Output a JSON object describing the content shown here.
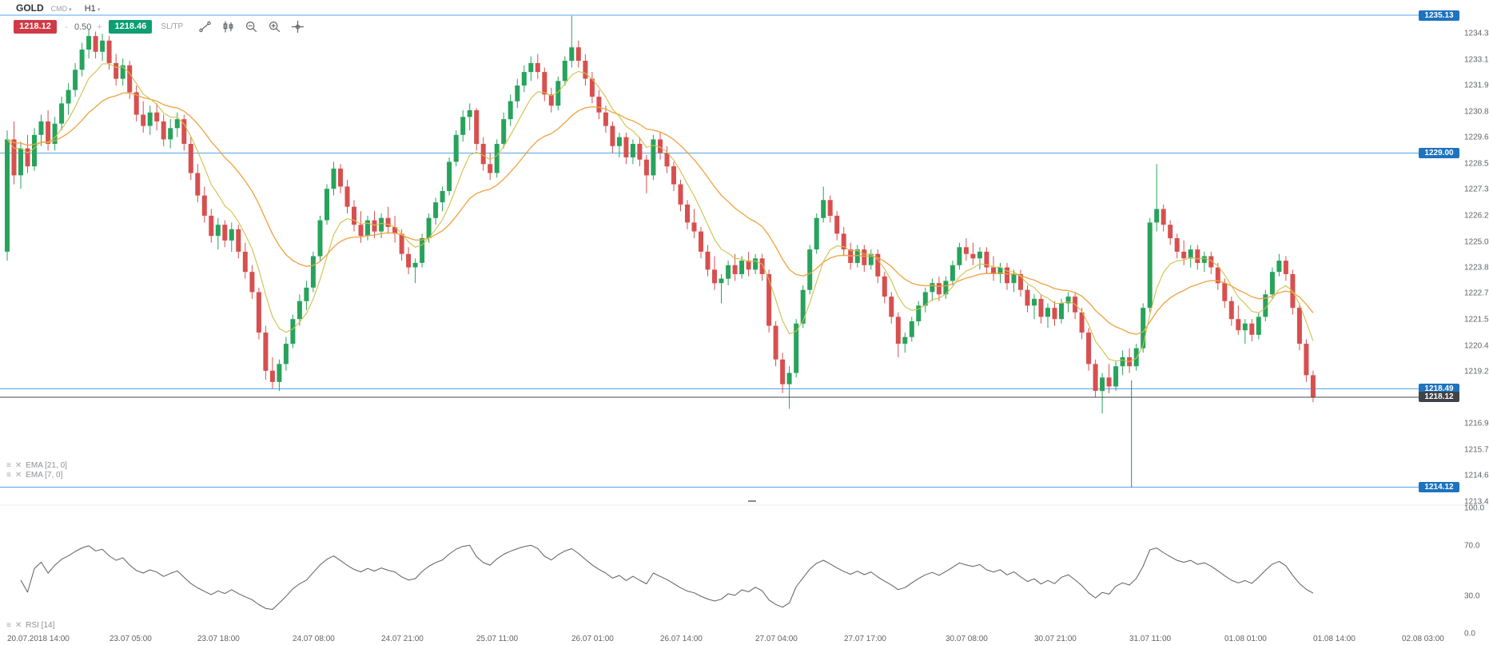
{
  "header": {
    "symbol": "GOLD",
    "market": "CMD",
    "timeframe": "H1"
  },
  "icons": {
    "menu": "≡",
    "close": "✕",
    "caret": "▾"
  },
  "toolbar": {
    "sell_price": "1218.12",
    "volume_minus": "-",
    "volume": "0.50",
    "volume_plus": "+",
    "buy_price": "1218.46",
    "sltp_label": "SL/TP"
  },
  "indicators": {
    "ema21_label": "EMA [21, 0]",
    "ema7_label": "EMA [7, 0]",
    "rsi_label": "RSI [14]"
  },
  "price_axis": {
    "labels": [
      "1234.31",
      "1233.15",
      "1231.99",
      "1230.83",
      "1229.67",
      "1228.52",
      "1227.36",
      "1226.20",
      "1225.04",
      "1223.89",
      "1222.73",
      "1221.57",
      "1220.41",
      "1219.26",
      "1216.94",
      "1215.78",
      "1214.62",
      "1213.47"
    ]
  },
  "rsi_axis": {
    "labels": [
      "100.0",
      "70.0",
      "30.0",
      "0.0"
    ]
  },
  "price_lines": [
    {
      "label": "1235.13",
      "value": 1235.13
    },
    {
      "label": "1229.00",
      "value": 1229.0
    },
    {
      "label": "1218.49",
      "value": 1218.49
    },
    {
      "label": "1214.12",
      "value": 1214.12
    }
  ],
  "current_price": {
    "label": "1218.12",
    "value": 1218.12
  },
  "time_axis": [
    {
      "label": "20.07.2018 14:00",
      "idx": 0
    },
    {
      "label": "23.07 05:00",
      "idx": 15
    },
    {
      "label": "23.07 18:00",
      "idx": 28
    },
    {
      "label": "24.07 08:00",
      "idx": 42
    },
    {
      "label": "24.07 21:00",
      "idx": 55
    },
    {
      "label": "25.07 11:00",
      "idx": 69
    },
    {
      "label": "26.07 01:00",
      "idx": 83
    },
    {
      "label": "26.07 14:00",
      "idx": 96
    },
    {
      "label": "27.07 04:00",
      "idx": 110
    },
    {
      "label": "27.07 17:00",
      "idx": 123
    },
    {
      "label": "30.07 08:00",
      "idx": 138
    },
    {
      "label": "30.07 21:00",
      "idx": 151
    },
    {
      "label": "31.07 11:00",
      "idx": 165
    },
    {
      "label": "01.08 01:00",
      "idx": 179
    },
    {
      "label": "01.08 14:00",
      "idx": 192
    },
    {
      "label": "02.08 03:00",
      "idx": 205
    }
  ],
  "colors": {
    "bull": "#27a35c",
    "bear": "#d84f4f",
    "ema21": "#f0a13e",
    "ema7": "#cfc04a",
    "level_line": "#56a5e8",
    "badge_blue": "#1e73be",
    "current_line": "#44484c",
    "current_badge": "#404448",
    "rsi_line": "#5f5f5f",
    "marker_teal": "#1f8a85",
    "sell_red": "#cf3a46",
    "buy_green": "#0d9e72"
  },
  "chart_data": {
    "type": "candlestick",
    "instrument": "GOLD",
    "timeframe": "H1",
    "first_candle_time": "20.07.2018 14:00",
    "last_price": 1218.12,
    "ylim": [
      1213.0,
      1235.6
    ],
    "overlays": [
      "EMA(21)",
      "EMA(7)"
    ],
    "oscillator": {
      "name": "RSI(14)",
      "range": [
        0,
        100
      ],
      "visible_levels": [
        100,
        70,
        30,
        0
      ]
    },
    "horizontal_lines": [
      1235.13,
      1229.0,
      1218.49,
      1214.12
    ],
    "candles": [
      [
        1224.6,
        1230.0,
        1224.2,
        1229.6
      ],
      [
        1229.6,
        1230.4,
        1227.6,
        1228.0
      ],
      [
        1228.0,
        1229.5,
        1227.4,
        1229.2
      ],
      [
        1229.2,
        1229.8,
        1228.1,
        1228.4
      ],
      [
        1228.4,
        1230.1,
        1228.2,
        1229.8
      ],
      [
        1229.8,
        1230.7,
        1229.3,
        1230.4
      ],
      [
        1230.4,
        1230.9,
        1229.1,
        1229.4
      ],
      [
        1229.4,
        1230.6,
        1229.1,
        1230.3
      ],
      [
        1230.3,
        1231.5,
        1230.0,
        1231.2
      ],
      [
        1231.2,
        1232.1,
        1230.7,
        1231.8
      ],
      [
        1231.8,
        1233.0,
        1231.5,
        1232.7
      ],
      [
        1232.7,
        1233.9,
        1232.4,
        1233.6
      ],
      [
        1233.6,
        1234.5,
        1233.2,
        1234.2
      ],
      [
        1234.2,
        1234.4,
        1233.2,
        1233.5
      ],
      [
        1233.5,
        1234.3,
        1233.1,
        1234.0
      ],
      [
        1234.0,
        1234.2,
        1232.7,
        1233.0
      ],
      [
        1233.0,
        1233.4,
        1232.0,
        1232.3
      ],
      [
        1232.3,
        1233.2,
        1232.0,
        1232.9
      ],
      [
        1232.9,
        1233.1,
        1231.4,
        1231.7
      ],
      [
        1231.7,
        1232.0,
        1230.4,
        1230.7
      ],
      [
        1230.7,
        1231.3,
        1229.9,
        1230.2
      ],
      [
        1230.2,
        1231.1,
        1229.8,
        1230.8
      ],
      [
        1230.8,
        1231.2,
        1230.0,
        1230.4
      ],
      [
        1230.4,
        1230.7,
        1229.3,
        1229.6
      ],
      [
        1229.6,
        1230.5,
        1229.2,
        1230.1
      ],
      [
        1230.1,
        1230.8,
        1229.7,
        1230.5
      ],
      [
        1230.5,
        1230.7,
        1229.1,
        1229.4
      ],
      [
        1229.4,
        1229.7,
        1227.8,
        1228.1
      ],
      [
        1228.1,
        1228.5,
        1226.8,
        1227.1
      ],
      [
        1227.1,
        1227.5,
        1225.9,
        1226.2
      ],
      [
        1226.2,
        1226.5,
        1225.0,
        1225.3
      ],
      [
        1225.3,
        1226.1,
        1224.7,
        1225.8
      ],
      [
        1225.8,
        1226.0,
        1224.8,
        1225.1
      ],
      [
        1225.1,
        1225.9,
        1224.6,
        1225.6
      ],
      [
        1225.6,
        1225.8,
        1224.3,
        1224.6
      ],
      [
        1224.6,
        1225.0,
        1223.4,
        1223.7
      ],
      [
        1223.7,
        1224.0,
        1222.5,
        1222.8
      ],
      [
        1222.8,
        1223.0,
        1220.7,
        1221.0
      ],
      [
        1221.0,
        1221.3,
        1218.9,
        1219.3
      ],
      [
        1219.3,
        1219.9,
        1218.5,
        1218.8
      ],
      [
        1218.8,
        1219.8,
        1218.4,
        1219.6
      ],
      [
        1219.6,
        1220.8,
        1219.3,
        1220.5
      ],
      [
        1220.5,
        1221.8,
        1220.3,
        1221.6
      ],
      [
        1221.6,
        1222.7,
        1221.3,
        1222.4
      ],
      [
        1222.4,
        1223.3,
        1222.0,
        1223.0
      ],
      [
        1223.0,
        1224.6,
        1222.8,
        1224.4
      ],
      [
        1224.4,
        1226.2,
        1224.2,
        1226.0
      ],
      [
        1226.0,
        1227.6,
        1225.8,
        1227.4
      ],
      [
        1227.4,
        1228.6,
        1227.1,
        1228.3
      ],
      [
        1228.3,
        1228.5,
        1227.2,
        1227.5
      ],
      [
        1227.5,
        1227.8,
        1226.3,
        1226.6
      ],
      [
        1226.6,
        1226.9,
        1225.5,
        1225.8
      ],
      [
        1225.8,
        1226.4,
        1225.0,
        1225.3
      ],
      [
        1225.3,
        1226.2,
        1225.1,
        1226.0
      ],
      [
        1226.0,
        1226.4,
        1225.2,
        1225.5
      ],
      [
        1225.5,
        1226.3,
        1225.2,
        1226.1
      ],
      [
        1226.1,
        1226.6,
        1225.4,
        1225.7
      ],
      [
        1225.7,
        1226.2,
        1225.0,
        1225.4
      ],
      [
        1225.4,
        1225.6,
        1224.2,
        1224.5
      ],
      [
        1224.5,
        1224.8,
        1223.6,
        1223.9
      ],
      [
        1223.9,
        1224.3,
        1223.2,
        1224.1
      ],
      [
        1224.1,
        1225.4,
        1223.9,
        1225.2
      ],
      [
        1225.2,
        1226.3,
        1225.0,
        1226.1
      ],
      [
        1226.1,
        1227.0,
        1225.8,
        1226.8
      ],
      [
        1226.8,
        1227.5,
        1226.4,
        1227.3
      ],
      [
        1227.3,
        1228.8,
        1227.1,
        1228.6
      ],
      [
        1228.6,
        1230.0,
        1228.4,
        1229.8
      ],
      [
        1229.8,
        1230.9,
        1229.5,
        1230.6
      ],
      [
        1230.6,
        1231.2,
        1230.0,
        1230.9
      ],
      [
        1230.9,
        1231.0,
        1229.1,
        1229.4
      ],
      [
        1229.4,
        1229.7,
        1228.2,
        1228.5
      ],
      [
        1228.5,
        1229.0,
        1227.8,
        1228.1
      ],
      [
        1228.1,
        1229.6,
        1227.9,
        1229.4
      ],
      [
        1229.4,
        1230.8,
        1229.2,
        1230.5
      ],
      [
        1230.5,
        1231.6,
        1230.2,
        1231.3
      ],
      [
        1231.3,
        1232.3,
        1231.0,
        1232.0
      ],
      [
        1232.0,
        1232.9,
        1231.7,
        1232.6
      ],
      [
        1232.6,
        1233.3,
        1232.2,
        1233.0
      ],
      [
        1233.0,
        1233.4,
        1232.3,
        1232.6
      ],
      [
        1232.6,
        1232.8,
        1231.3,
        1231.6
      ],
      [
        1231.6,
        1231.9,
        1230.8,
        1231.1
      ],
      [
        1231.1,
        1232.4,
        1230.9,
        1232.2
      ],
      [
        1232.2,
        1233.3,
        1232.0,
        1233.1
      ],
      [
        1233.1,
        1235.1,
        1232.8,
        1233.7
      ],
      [
        1233.7,
        1234.0,
        1232.8,
        1233.1
      ],
      [
        1233.1,
        1233.4,
        1232.0,
        1232.3
      ],
      [
        1232.3,
        1232.6,
        1231.2,
        1231.5
      ],
      [
        1231.5,
        1231.8,
        1230.5,
        1230.8
      ],
      [
        1230.8,
        1231.1,
        1229.9,
        1230.2
      ],
      [
        1230.2,
        1230.4,
        1229.0,
        1229.3
      ],
      [
        1229.3,
        1229.9,
        1228.8,
        1229.7
      ],
      [
        1229.7,
        1229.9,
        1228.5,
        1228.8
      ],
      [
        1228.8,
        1229.6,
        1228.5,
        1229.4
      ],
      [
        1229.4,
        1229.7,
        1228.4,
        1228.7
      ],
      [
        1228.7,
        1228.9,
        1227.2,
        1228.0
      ],
      [
        1228.0,
        1229.8,
        1227.8,
        1229.6
      ],
      [
        1229.6,
        1229.9,
        1228.7,
        1229.0
      ],
      [
        1229.0,
        1229.3,
        1228.1,
        1228.4
      ],
      [
        1228.4,
        1228.6,
        1227.3,
        1227.6
      ],
      [
        1227.6,
        1227.8,
        1226.4,
        1226.7
      ],
      [
        1226.7,
        1226.9,
        1225.6,
        1225.9
      ],
      [
        1225.9,
        1226.5,
        1225.2,
        1225.5
      ],
      [
        1225.5,
        1225.7,
        1224.3,
        1224.6
      ],
      [
        1224.6,
        1224.9,
        1223.5,
        1223.8
      ],
      [
        1223.8,
        1224.4,
        1222.9,
        1223.2
      ],
      [
        1223.2,
        1223.6,
        1222.3,
        1223.4
      ],
      [
        1223.4,
        1224.2,
        1223.1,
        1224.0
      ],
      [
        1224.0,
        1224.5,
        1223.3,
        1223.6
      ],
      [
        1223.6,
        1224.4,
        1223.4,
        1224.2
      ],
      [
        1224.2,
        1224.6,
        1223.5,
        1223.8
      ],
      [
        1223.8,
        1224.5,
        1223.6,
        1224.3
      ],
      [
        1224.3,
        1224.5,
        1223.3,
        1223.6
      ],
      [
        1223.6,
        1223.8,
        1221.0,
        1221.3
      ],
      [
        1221.3,
        1221.5,
        1219.5,
        1219.8
      ],
      [
        1219.8,
        1220.1,
        1218.3,
        1218.7
      ],
      [
        1218.7,
        1219.5,
        1217.6,
        1219.2
      ],
      [
        1219.2,
        1221.6,
        1219.0,
        1221.4
      ],
      [
        1221.4,
        1223.1,
        1221.2,
        1222.9
      ],
      [
        1222.9,
        1224.9,
        1222.7,
        1224.7
      ],
      [
        1224.7,
        1226.3,
        1224.5,
        1226.1
      ],
      [
        1226.1,
        1227.5,
        1225.9,
        1226.9
      ],
      [
        1226.9,
        1227.1,
        1225.9,
        1226.2
      ],
      [
        1226.2,
        1226.4,
        1225.1,
        1225.4
      ],
      [
        1225.4,
        1225.7,
        1224.4,
        1224.7
      ],
      [
        1224.7,
        1225.0,
        1223.8,
        1224.1
      ],
      [
        1224.1,
        1224.9,
        1223.9,
        1224.7
      ],
      [
        1224.7,
        1224.9,
        1223.7,
        1224.0
      ],
      [
        1224.0,
        1224.7,
        1223.8,
        1224.5
      ],
      [
        1224.5,
        1224.7,
        1223.2,
        1223.5
      ],
      [
        1223.5,
        1223.7,
        1222.3,
        1222.6
      ],
      [
        1222.6,
        1222.8,
        1221.4,
        1221.7
      ],
      [
        1221.7,
        1221.9,
        1219.9,
        1220.5
      ],
      [
        1220.5,
        1221.0,
        1220.1,
        1220.8
      ],
      [
        1220.8,
        1221.7,
        1220.6,
        1221.5
      ],
      [
        1221.5,
        1222.4,
        1221.3,
        1222.2
      ],
      [
        1222.2,
        1223.0,
        1221.9,
        1222.8
      ],
      [
        1222.8,
        1223.4,
        1222.4,
        1223.2
      ],
      [
        1223.2,
        1223.5,
        1222.4,
        1222.7
      ],
      [
        1222.7,
        1223.5,
        1222.5,
        1223.3
      ],
      [
        1223.3,
        1224.2,
        1223.1,
        1224.0
      ],
      [
        1224.0,
        1225.0,
        1223.8,
        1224.8
      ],
      [
        1224.8,
        1225.2,
        1224.2,
        1224.5
      ],
      [
        1224.5,
        1225.0,
        1224.0,
        1224.3
      ],
      [
        1224.3,
        1224.8,
        1223.8,
        1224.6
      ],
      [
        1224.6,
        1224.8,
        1223.6,
        1223.9
      ],
      [
        1223.9,
        1224.4,
        1223.3,
        1223.6
      ],
      [
        1223.6,
        1224.1,
        1223.2,
        1223.9
      ],
      [
        1223.9,
        1224.1,
        1222.9,
        1223.2
      ],
      [
        1223.2,
        1223.8,
        1222.8,
        1223.6
      ],
      [
        1223.6,
        1223.8,
        1222.6,
        1222.9
      ],
      [
        1222.9,
        1223.1,
        1221.9,
        1222.2
      ],
      [
        1222.2,
        1222.7,
        1221.6,
        1222.5
      ],
      [
        1222.5,
        1222.7,
        1221.4,
        1221.7
      ],
      [
        1221.7,
        1222.3,
        1221.2,
        1222.1
      ],
      [
        1222.1,
        1222.4,
        1221.3,
        1221.6
      ],
      [
        1221.6,
        1222.5,
        1221.4,
        1222.3
      ],
      [
        1222.3,
        1222.8,
        1221.9,
        1222.6
      ],
      [
        1222.6,
        1222.8,
        1221.6,
        1221.9
      ],
      [
        1221.9,
        1222.1,
        1220.7,
        1221.0
      ],
      [
        1221.0,
        1221.2,
        1219.3,
        1219.6
      ],
      [
        1219.6,
        1219.8,
        1218.1,
        1218.4
      ],
      [
        1218.4,
        1219.2,
        1217.4,
        1219.0
      ],
      [
        1219.0,
        1219.6,
        1218.3,
        1218.6
      ],
      [
        1218.6,
        1219.7,
        1218.4,
        1219.5
      ],
      [
        1219.5,
        1220.2,
        1219.1,
        1219.9
      ],
      [
        1219.9,
        1220.3,
        1219.2,
        1219.5
      ],
      [
        1219.5,
        1220.5,
        1219.3,
        1220.3
      ],
      [
        1220.3,
        1222.3,
        1220.1,
        1222.1
      ],
      [
        1222.1,
        1226.1,
        1221.9,
        1225.9
      ],
      [
        1225.9,
        1228.5,
        1225.5,
        1226.5
      ],
      [
        1226.5,
        1226.7,
        1225.5,
        1225.8
      ],
      [
        1225.8,
        1226.0,
        1224.9,
        1225.2
      ],
      [
        1225.2,
        1225.4,
        1224.3,
        1224.6
      ],
      [
        1224.6,
        1225.1,
        1224.0,
        1224.3
      ],
      [
        1224.3,
        1224.9,
        1223.9,
        1224.7
      ],
      [
        1224.7,
        1224.9,
        1223.8,
        1224.1
      ],
      [
        1224.1,
        1224.6,
        1223.7,
        1224.4
      ],
      [
        1224.4,
        1224.6,
        1223.6,
        1223.9
      ],
      [
        1223.9,
        1224.1,
        1222.9,
        1223.2
      ],
      [
        1223.2,
        1223.4,
        1222.1,
        1222.4
      ],
      [
        1222.4,
        1222.6,
        1221.3,
        1221.6
      ],
      [
        1221.6,
        1222.2,
        1220.9,
        1221.1
      ],
      [
        1221.1,
        1221.6,
        1220.5,
        1221.4
      ],
      [
        1221.4,
        1221.6,
        1220.6,
        1220.9
      ],
      [
        1220.9,
        1221.9,
        1220.7,
        1221.7
      ],
      [
        1221.7,
        1222.9,
        1221.5,
        1222.7
      ],
      [
        1222.7,
        1223.9,
        1222.5,
        1223.7
      ],
      [
        1223.7,
        1224.5,
        1223.5,
        1224.2
      ],
      [
        1224.2,
        1224.4,
        1223.3,
        1223.6
      ],
      [
        1223.6,
        1223.8,
        1221.8,
        1222.1
      ],
      [
        1222.1,
        1222.3,
        1220.2,
        1220.5
      ],
      [
        1220.5,
        1220.7,
        1218.8,
        1219.1
      ],
      [
        1219.1,
        1219.3,
        1217.9,
        1218.1
      ]
    ]
  }
}
